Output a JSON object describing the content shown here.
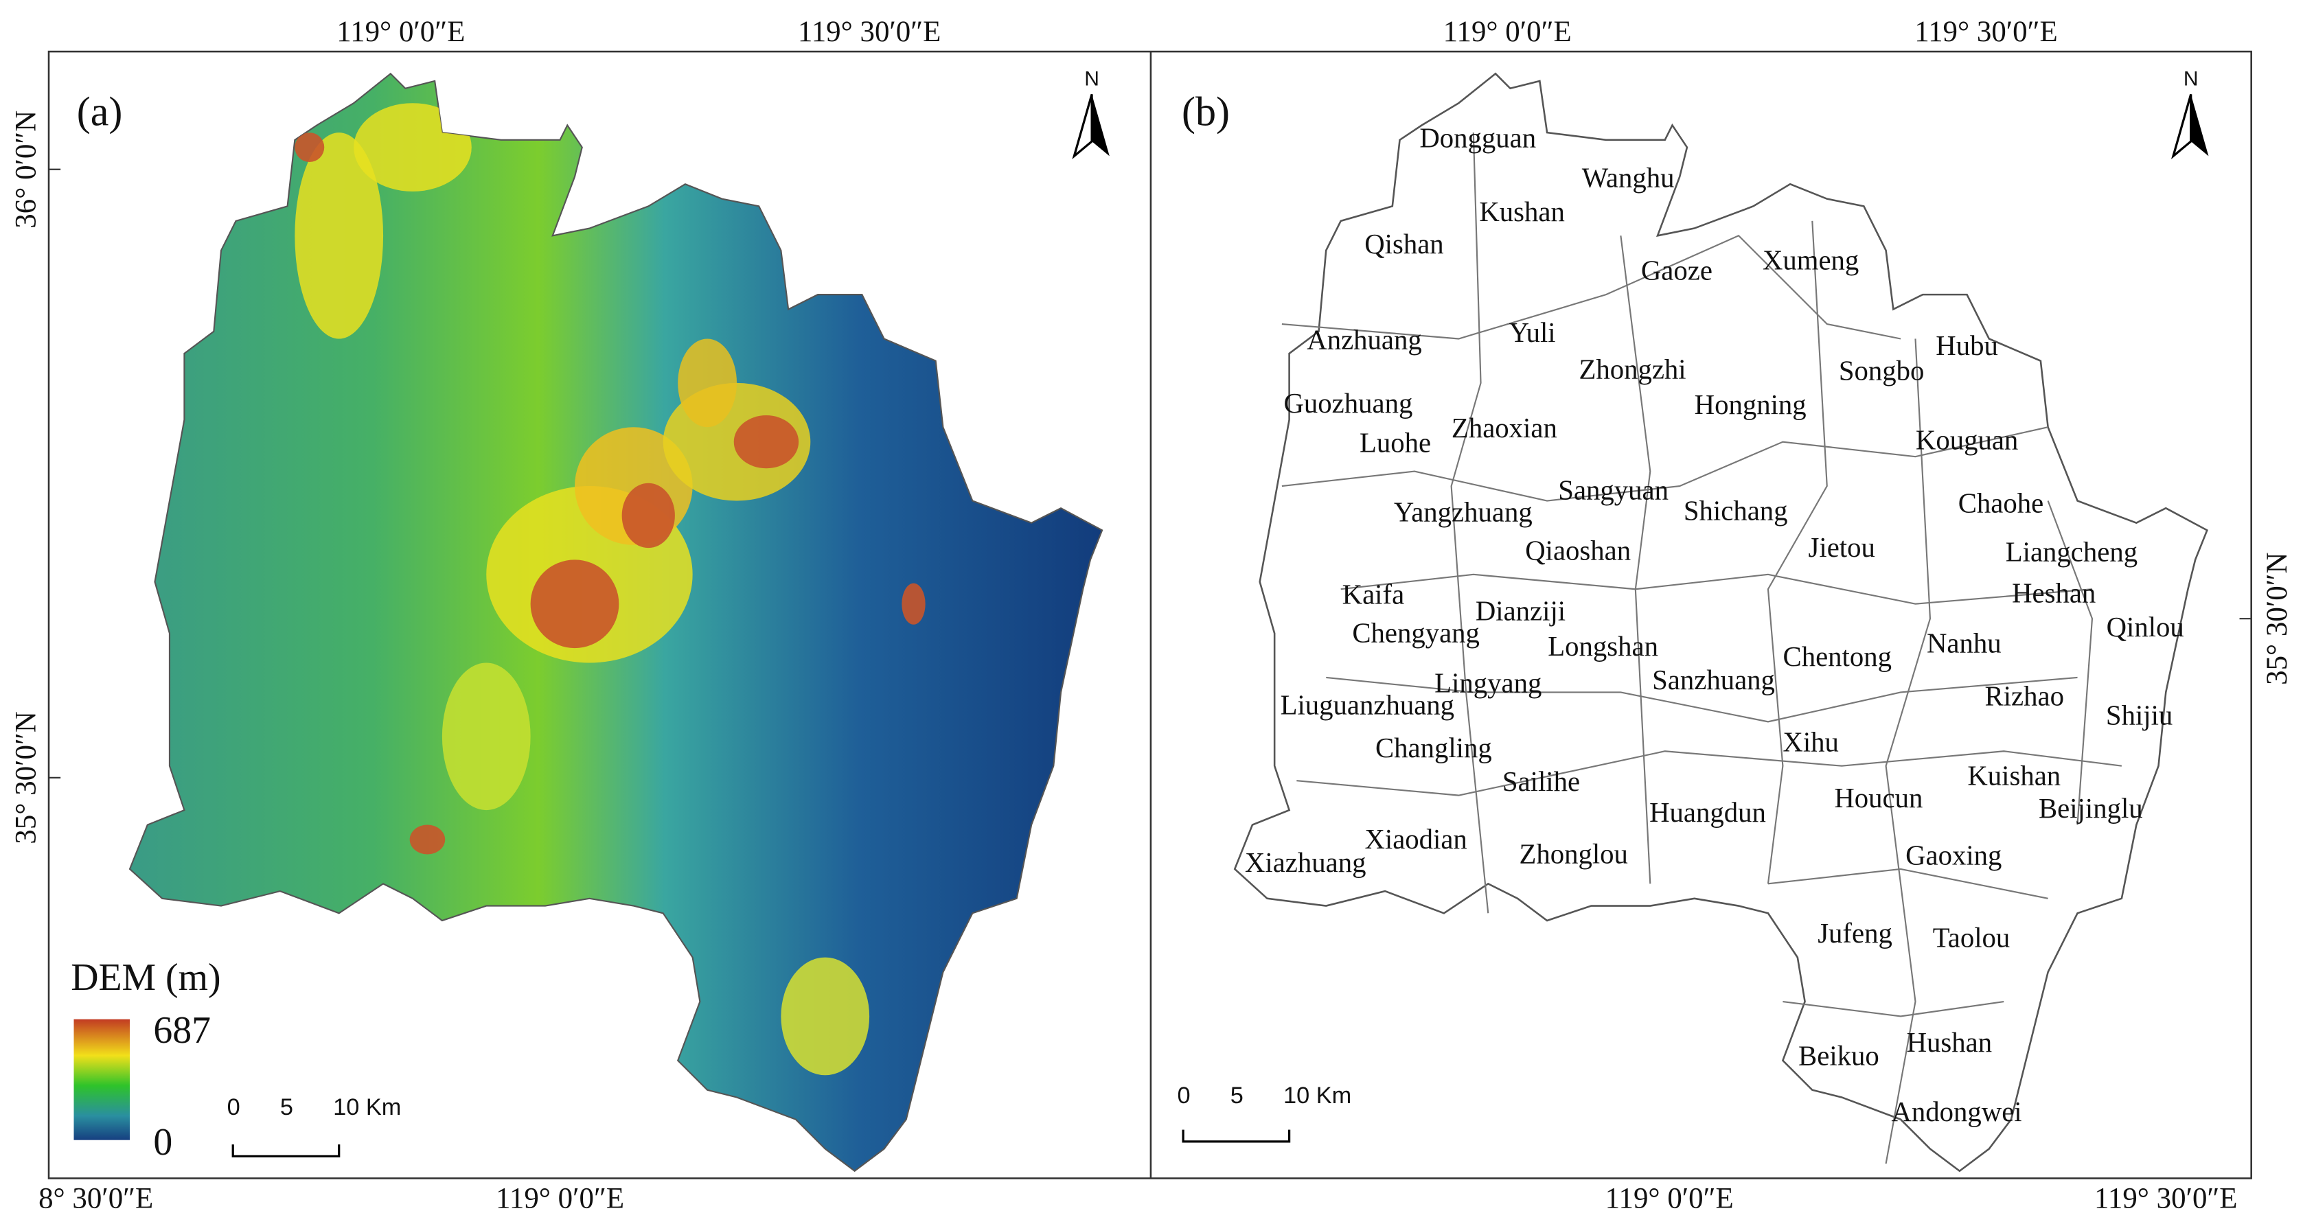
{
  "panels": [
    {
      "label": "(a)",
      "north": "N",
      "top_coords": [
        "119° 0′0″E",
        "119° 30′0″E"
      ],
      "bottom_coords": [
        "8° 30′0″E",
        "119° 0′0″E"
      ],
      "side_coords": [
        "36° 0′0″N",
        "35° 30′0″N"
      ],
      "legend": {
        "title": "DEM (m)",
        "max": "687",
        "min": "0"
      },
      "scale_bar": [
        "0",
        "5",
        "10 Km"
      ]
    },
    {
      "label": "(b)",
      "north": "N",
      "top_coords": [
        "119° 0′0″E",
        "119° 30′0″E"
      ],
      "bottom_coords": [
        "119° 0′0″E",
        "119° 30′0″E"
      ],
      "side_coords": [
        "35° 30′0″N"
      ],
      "scale_bar": [
        "0",
        "5",
        "10 Km"
      ],
      "towns": [
        "Dongguan",
        "Wanghu",
        "Kushan",
        "Qishan",
        "Gaoze",
        "Xumeng",
        "Yuli",
        "Anzhuang",
        "Zhongzhi",
        "Songbo",
        "Hubu",
        "Hongning",
        "Guozhuang",
        "Zhaoxian",
        "Kouguan",
        "Luohe",
        "Sangyuan",
        "Shichang",
        "Chaohe",
        "Yangzhuang",
        "Qiaoshan",
        "Jietou",
        "Liangcheng",
        "Kaifa",
        "Heshan",
        "Dianziji",
        "Qinlou",
        "Chengyang",
        "Longshan",
        "Nanhu",
        "Chentong",
        "Sanzhuang",
        "Lingyang",
        "Rizhao",
        "Liuguanzhuang",
        "Shijiu",
        "Xihu",
        "Changling",
        "Kuishan",
        "Sailihe",
        "Houcun",
        "Beijinglu",
        "Huangdun",
        "Xiaodian",
        "Zhonglou",
        "Gaoxing",
        "Xiazhuang",
        "Jufeng",
        "Taolou",
        "Hushan",
        "Beikuo",
        "Andongwei"
      ]
    }
  ]
}
